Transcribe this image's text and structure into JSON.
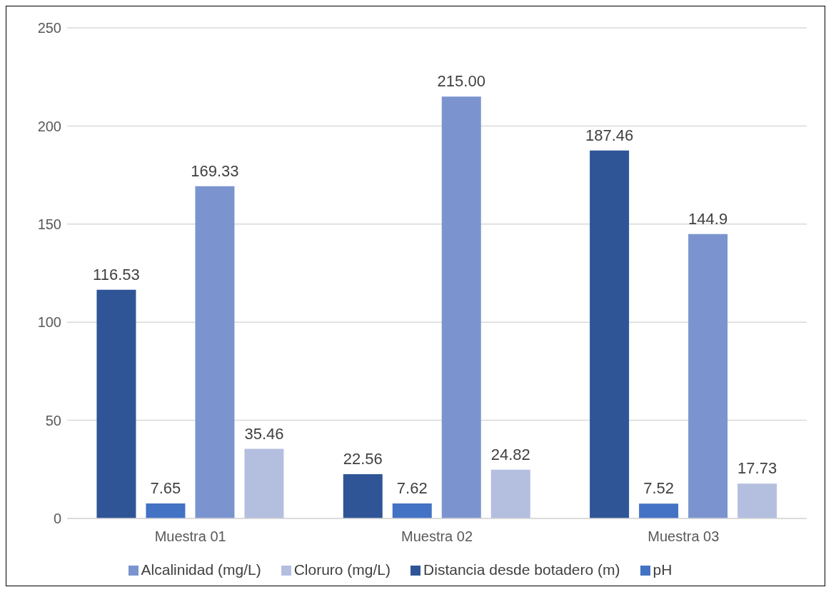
{
  "chart_data": {
    "type": "bar",
    "categories": [
      "Muestra 01",
      "Muestra 02",
      "Muestra 03"
    ],
    "series": [
      {
        "name": "Distancia desde botadero (m)",
        "color": "#2f5597",
        "values": [
          116.53,
          22.56,
          187.46
        ],
        "value_labels": [
          "116.53",
          "22.56",
          "187.46"
        ]
      },
      {
        "name": "pH",
        "color": "#4472c4",
        "values": [
          7.65,
          7.62,
          7.52
        ],
        "value_labels": [
          "7.65",
          "7.62",
          "7.52"
        ]
      },
      {
        "name": "Alcalinidad (mg/L)",
        "color": "#7b94d0",
        "values": [
          169.33,
          215,
          144.9
        ],
        "value_labels": [
          "169.33",
          "215.00",
          "144.9"
        ]
      },
      {
        "name": "Cloruro (mg/L)",
        "color": "#b4bfe0",
        "values": [
          35.46,
          24.82,
          17.73
        ],
        "value_labels": [
          "35.46",
          "24.82",
          "17.73"
        ]
      }
    ],
    "ylim": [
      0,
      250
    ],
    "yticks": [
      0,
      50,
      100,
      150,
      200,
      250
    ],
    "grid": "y",
    "legend": "bottom"
  }
}
